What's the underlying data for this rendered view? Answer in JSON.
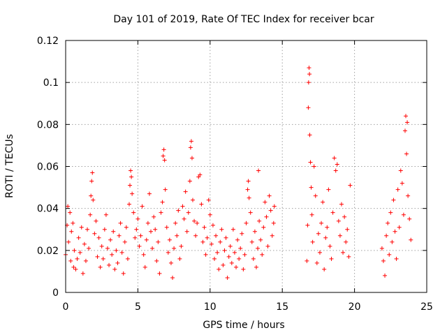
{
  "chart_data": {
    "type": "scatter",
    "title": "Day 101 of 2019, Rate Of TEC Index for receiver bcar",
    "xlabel": "GPS time / hours",
    "ylabel": "ROTI / TECUs",
    "xlim": [
      0,
      25
    ],
    "ylim": [
      0,
      0.12
    ],
    "xticks": [
      "0",
      "5",
      "10",
      "15",
      "20",
      "25"
    ],
    "yticks": [
      "0",
      "0.02",
      "0.04",
      "0.06",
      "0.08",
      "0.1",
      "0.12"
    ],
    "grid": true,
    "marker": "+",
    "series": [
      {
        "color": "#ff0000",
        "points": [
          [
            0.0,
            0.018
          ],
          [
            0.1,
            0.032
          ],
          [
            0.15,
            0.041
          ],
          [
            0.2,
            0.024
          ],
          [
            0.3,
            0.038
          ],
          [
            0.35,
            0.015
          ],
          [
            0.4,
            0.029
          ],
          [
            0.5,
            0.033
          ],
          [
            0.55,
            0.012
          ],
          [
            0.6,
            0.02
          ],
          [
            0.7,
            0.011
          ],
          [
            0.8,
            0.016
          ],
          [
            0.9,
            0.026
          ],
          [
            1.0,
            0.019
          ],
          [
            1.1,
            0.031
          ],
          [
            1.2,
            0.009
          ],
          [
            1.3,
            0.023
          ],
          [
            1.4,
            0.015
          ],
          [
            1.5,
            0.03
          ],
          [
            1.6,
            0.021
          ],
          [
            1.7,
            0.037
          ],
          [
            1.75,
            0.046
          ],
          [
            1.8,
            0.053
          ],
          [
            1.85,
            0.057
          ],
          [
            1.9,
            0.044
          ],
          [
            2.0,
            0.028
          ],
          [
            2.1,
            0.034
          ],
          [
            2.2,
            0.017
          ],
          [
            2.3,
            0.026
          ],
          [
            2.4,
            0.012
          ],
          [
            2.5,
            0.022
          ],
          [
            2.6,
            0.016
          ],
          [
            2.7,
            0.03
          ],
          [
            2.8,
            0.037
          ],
          [
            2.9,
            0.021
          ],
          [
            3.0,
            0.013
          ],
          [
            3.1,
            0.025
          ],
          [
            3.2,
            0.018
          ],
          [
            3.3,
            0.029
          ],
          [
            3.4,
            0.011
          ],
          [
            3.5,
            0.02
          ],
          [
            3.6,
            0.014
          ],
          [
            3.7,
            0.027
          ],
          [
            3.8,
            0.033
          ],
          [
            3.9,
            0.019
          ],
          [
            4.0,
            0.009
          ],
          [
            4.1,
            0.024
          ],
          [
            4.2,
            0.031
          ],
          [
            4.3,
            0.016
          ],
          [
            4.4,
            0.042
          ],
          [
            4.45,
            0.051
          ],
          [
            4.5,
            0.058
          ],
          [
            4.55,
            0.055
          ],
          [
            4.6,
            0.047
          ],
          [
            4.7,
            0.038
          ],
          [
            4.8,
            0.026
          ],
          [
            4.9,
            0.03
          ],
          [
            5.0,
            0.035
          ],
          [
            5.1,
            0.022
          ],
          [
            5.2,
            0.027
          ],
          [
            5.3,
            0.041
          ],
          [
            5.4,
            0.018
          ],
          [
            5.5,
            0.012
          ],
          [
            5.6,
            0.025
          ],
          [
            5.7,
            0.033
          ],
          [
            5.8,
            0.047
          ],
          [
            5.9,
            0.029
          ],
          [
            6.0,
            0.021
          ],
          [
            6.1,
            0.036
          ],
          [
            6.2,
            0.03
          ],
          [
            6.3,
            0.015
          ],
          [
            6.4,
            0.024
          ],
          [
            6.5,
            0.009
          ],
          [
            6.6,
            0.038
          ],
          [
            6.7,
            0.043
          ],
          [
            6.75,
            0.065
          ],
          [
            6.8,
            0.068
          ],
          [
            6.85,
            0.063
          ],
          [
            6.9,
            0.049
          ],
          [
            7.0,
            0.031
          ],
          [
            7.1,
            0.019
          ],
          [
            7.2,
            0.025
          ],
          [
            7.3,
            0.014
          ],
          [
            7.4,
            0.007
          ],
          [
            7.5,
            0.021
          ],
          [
            7.6,
            0.033
          ],
          [
            7.7,
            0.027
          ],
          [
            7.8,
            0.039
          ],
          [
            7.9,
            0.016
          ],
          [
            8.0,
            0.022
          ],
          [
            8.1,
            0.041
          ],
          [
            8.2,
            0.035
          ],
          [
            8.3,
            0.048
          ],
          [
            8.4,
            0.029
          ],
          [
            8.5,
            0.038
          ],
          [
            8.6,
            0.053
          ],
          [
            8.65,
            0.069
          ],
          [
            8.7,
            0.072
          ],
          [
            8.75,
            0.064
          ],
          [
            8.8,
            0.044
          ],
          [
            8.9,
            0.034
          ],
          [
            9.0,
            0.027
          ],
          [
            9.1,
            0.033
          ],
          [
            9.2,
            0.055
          ],
          [
            9.3,
            0.056
          ],
          [
            9.4,
            0.042
          ],
          [
            9.5,
            0.024
          ],
          [
            9.6,
            0.031
          ],
          [
            9.7,
            0.018
          ],
          [
            9.8,
            0.026
          ],
          [
            9.9,
            0.044
          ],
          [
            10.0,
            0.037
          ],
          [
            10.1,
            0.023
          ],
          [
            10.2,
            0.032
          ],
          [
            10.3,
            0.016
          ],
          [
            10.4,
            0.027
          ],
          [
            10.5,
            0.019
          ],
          [
            10.6,
            0.011
          ],
          [
            10.7,
            0.024
          ],
          [
            10.8,
            0.03
          ],
          [
            10.9,
            0.013
          ],
          [
            11.0,
            0.02
          ],
          [
            11.1,
            0.026
          ],
          [
            11.2,
            0.007
          ],
          [
            11.3,
            0.017
          ],
          [
            11.4,
            0.022
          ],
          [
            11.5,
            0.014
          ],
          [
            11.6,
            0.03
          ],
          [
            11.7,
            0.019
          ],
          [
            11.8,
            0.012
          ],
          [
            11.9,
            0.025
          ],
          [
            12.0,
            0.016
          ],
          [
            12.1,
            0.021
          ],
          [
            12.2,
            0.028
          ],
          [
            12.3,
            0.011
          ],
          [
            12.4,
            0.018
          ],
          [
            12.5,
            0.033
          ],
          [
            12.6,
            0.049
          ],
          [
            12.65,
            0.053
          ],
          [
            12.7,
            0.045
          ],
          [
            12.8,
            0.038
          ],
          [
            12.9,
            0.024
          ],
          [
            13.0,
            0.016
          ],
          [
            13.1,
            0.029
          ],
          [
            13.2,
            0.012
          ],
          [
            13.3,
            0.021
          ],
          [
            13.35,
            0.058
          ],
          [
            13.4,
            0.034
          ],
          [
            13.5,
            0.025
          ],
          [
            13.6,
            0.018
          ],
          [
            13.7,
            0.031
          ],
          [
            13.8,
            0.043
          ],
          [
            13.9,
            0.036
          ],
          [
            14.0,
            0.022
          ],
          [
            14.1,
            0.046
          ],
          [
            14.2,
            0.039
          ],
          [
            14.3,
            0.027
          ],
          [
            14.4,
            0.033
          ],
          [
            14.45,
            0.041
          ],
          [
            16.7,
            0.015
          ],
          [
            16.75,
            0.032
          ],
          [
            16.8,
            0.088
          ],
          [
            16.82,
            0.1
          ],
          [
            16.85,
            0.107
          ],
          [
            16.88,
            0.104
          ],
          [
            16.9,
            0.075
          ],
          [
            16.95,
            0.062
          ],
          [
            17.0,
            0.05
          ],
          [
            17.05,
            0.037
          ],
          [
            17.1,
            0.024
          ],
          [
            17.2,
            0.06
          ],
          [
            17.3,
            0.046
          ],
          [
            17.4,
            0.014
          ],
          [
            17.5,
            0.028
          ],
          [
            17.6,
            0.019
          ],
          [
            17.7,
            0.033
          ],
          [
            17.8,
            0.043
          ],
          [
            17.9,
            0.011
          ],
          [
            18.0,
            0.026
          ],
          [
            18.1,
            0.031
          ],
          [
            18.2,
            0.049
          ],
          [
            18.3,
            0.022
          ],
          [
            18.4,
            0.016
          ],
          [
            18.5,
            0.038
          ],
          [
            18.6,
            0.064
          ],
          [
            18.7,
            0.058
          ],
          [
            18.8,
            0.061
          ],
          [
            18.9,
            0.034
          ],
          [
            19.0,
            0.027
          ],
          [
            19.1,
            0.042
          ],
          [
            19.2,
            0.019
          ],
          [
            19.3,
            0.036
          ],
          [
            19.4,
            0.024
          ],
          [
            19.5,
            0.03
          ],
          [
            19.6,
            0.017
          ],
          [
            19.7,
            0.051
          ],
          [
            21.9,
            0.021
          ],
          [
            22.0,
            0.015
          ],
          [
            22.1,
            0.008
          ],
          [
            22.2,
            0.027
          ],
          [
            22.3,
            0.033
          ],
          [
            22.4,
            0.018
          ],
          [
            22.5,
            0.038
          ],
          [
            22.6,
            0.024
          ],
          [
            22.7,
            0.044
          ],
          [
            22.8,
            0.029
          ],
          [
            22.9,
            0.016
          ],
          [
            23.0,
            0.049
          ],
          [
            23.1,
            0.031
          ],
          [
            23.2,
            0.058
          ],
          [
            23.3,
            0.052
          ],
          [
            23.4,
            0.037
          ],
          [
            23.5,
            0.077
          ],
          [
            23.55,
            0.084
          ],
          [
            23.6,
            0.066
          ],
          [
            23.65,
            0.081
          ],
          [
            23.7,
            0.046
          ],
          [
            23.8,
            0.035
          ],
          [
            23.9,
            0.025
          ]
        ]
      }
    ]
  }
}
